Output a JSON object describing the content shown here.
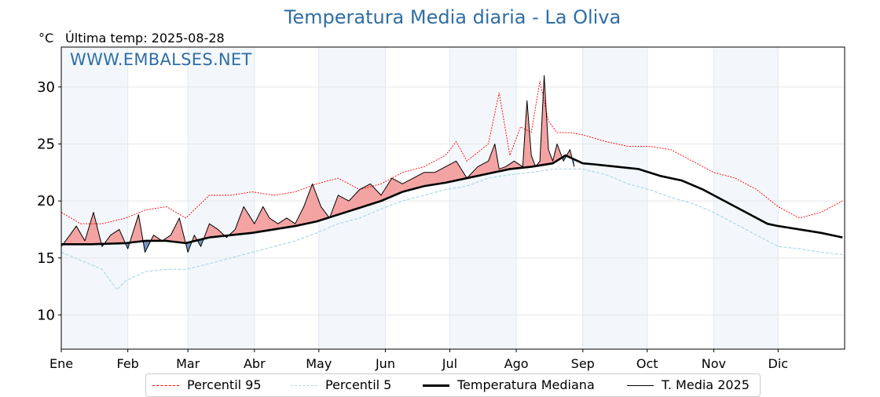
{
  "title": "Temperatura Media diaria - La Oliva",
  "unit": "°C",
  "last_temp_label": "Última temp: 2025-08-28",
  "watermark": "WWW.EMBALSES.NET",
  "colors": {
    "title": "#2f6ea5",
    "p95": "#ff0000",
    "p5": "#add8e6",
    "median": "#000000",
    "current": "#000000",
    "above_fill": "#f4a3a3",
    "below_fill": "#6e96c0",
    "band": "#f3f7fb"
  },
  "legend": {
    "p95": "Percentil 95",
    "p5": "Percentil 5",
    "median": "Temperatura Mediana",
    "current": "T. Media 2025"
  },
  "chart_data": {
    "type": "line",
    "title": "Temperatura Media diaria - La Oliva",
    "ylabel": "°C",
    "ylim": [
      7,
      33.5
    ],
    "xlim": [
      1,
      366
    ],
    "yticks": [
      10,
      15,
      20,
      25,
      30
    ],
    "x_tick_labels": [
      "Ene",
      "Feb",
      "Mar",
      "Abr",
      "May",
      "Jun",
      "Jul",
      "Ago",
      "Sep",
      "Oct",
      "Nov",
      "Dic"
    ],
    "x_tick_days": [
      1,
      32,
      60,
      91,
      121,
      152,
      182,
      213,
      244,
      274,
      305,
      335
    ],
    "grid": true,
    "legend_position": "bottom",
    "series_units": "°C, day of year",
    "series": [
      {
        "name": "Percentil 95",
        "x": [
          1,
          10,
          20,
          31,
          40,
          50,
          59,
          70,
          80,
          90,
          100,
          110,
          120,
          130,
          140,
          150,
          160,
          170,
          180,
          185,
          190,
          200,
          205,
          210,
          215,
          220,
          224,
          228,
          232,
          238,
          244,
          255,
          265,
          275,
          285,
          295,
          305,
          315,
          325,
          335,
          345,
          355,
          365
        ],
        "y": [
          19.0,
          18.0,
          18.0,
          18.5,
          19.2,
          19.5,
          18.5,
          20.5,
          20.5,
          20.8,
          20.5,
          20.8,
          21.5,
          22.0,
          21.0,
          21.5,
          22.5,
          23.0,
          24.0,
          25.2,
          23.5,
          25.0,
          29.5,
          24.0,
          26.5,
          26.0,
          30.5,
          27.0,
          26.0,
          26.0,
          25.8,
          25.2,
          24.8,
          24.8,
          24.5,
          23.5,
          22.5,
          22.0,
          21.0,
          19.5,
          18.5,
          19.0,
          20.0
        ]
      },
      {
        "name": "Percentil 5",
        "x": [
          1,
          10,
          20,
          27,
          31,
          40,
          50,
          59,
          70,
          80,
          90,
          100,
          110,
          120,
          130,
          140,
          150,
          160,
          170,
          180,
          190,
          200,
          210,
          220,
          230,
          240,
          244,
          255,
          265,
          275,
          285,
          295,
          305,
          315,
          325,
          335,
          345,
          355,
          365
        ],
        "y": [
          15.5,
          14.8,
          14.0,
          12.2,
          13.0,
          13.8,
          14.0,
          14.0,
          14.5,
          15.0,
          15.5,
          16.0,
          16.5,
          17.2,
          18.0,
          18.5,
          19.3,
          20.0,
          20.5,
          21.0,
          21.3,
          22.0,
          22.3,
          22.5,
          22.8,
          22.8,
          22.8,
          22.3,
          21.5,
          21.0,
          20.3,
          19.8,
          19.0,
          18.0,
          17.0,
          16.0,
          15.8,
          15.5,
          15.3
        ]
      },
      {
        "name": "Temperatura Mediana",
        "x": [
          1,
          15,
          31,
          40,
          50,
          59,
          70,
          80,
          90,
          100,
          110,
          120,
          130,
          140,
          150,
          160,
          170,
          180,
          190,
          200,
          210,
          220,
          230,
          236,
          244,
          250,
          260,
          270,
          280,
          290,
          300,
          310,
          320,
          330,
          335,
          345,
          355,
          365
        ],
        "y": [
          16.2,
          16.2,
          16.3,
          16.5,
          16.5,
          16.3,
          16.8,
          17.0,
          17.2,
          17.5,
          17.8,
          18.2,
          18.8,
          19.4,
          20.0,
          20.8,
          21.3,
          21.6,
          22.0,
          22.4,
          22.8,
          23.0,
          23.3,
          24.0,
          23.3,
          23.2,
          23.0,
          22.8,
          22.2,
          21.8,
          21.0,
          20.0,
          19.0,
          18.0,
          17.8,
          17.5,
          17.2,
          16.8
        ]
      },
      {
        "name": "T. Media 2025",
        "x": [
          1,
          5,
          8,
          12,
          16,
          20,
          24,
          28,
          32,
          37,
          40,
          44,
          48,
          52,
          56,
          60,
          63,
          66,
          70,
          74,
          78,
          82,
          86,
          91,
          95,
          98,
          102,
          106,
          110,
          114,
          118,
          122,
          126,
          130,
          135,
          140,
          145,
          150,
          155,
          160,
          165,
          170,
          175,
          180,
          185,
          190,
          195,
          200,
          203,
          205,
          208,
          212,
          216,
          218,
          220,
          222,
          224,
          226,
          228,
          230,
          232,
          235,
          238,
          240
        ],
        "y": [
          16.0,
          17.0,
          17.8,
          16.5,
          19.0,
          16.0,
          17.0,
          17.5,
          15.8,
          18.8,
          15.5,
          17.0,
          16.5,
          17.0,
          18.5,
          15.5,
          17.0,
          16.0,
          18.0,
          17.5,
          16.8,
          17.5,
          19.5,
          18.0,
          19.5,
          18.5,
          18.0,
          18.5,
          18.0,
          19.5,
          21.5,
          19.5,
          18.5,
          20.5,
          20.0,
          21.0,
          21.5,
          20.5,
          22.0,
          21.5,
          22.0,
          22.5,
          22.5,
          23.0,
          23.5,
          22.0,
          23.0,
          23.5,
          25.0,
          22.8,
          23.0,
          23.5,
          23.0,
          28.8,
          24.0,
          23.0,
          23.5,
          31.0,
          24.5,
          23.5,
          25.0,
          23.5,
          24.5,
          23.0
        ]
      }
    ]
  }
}
